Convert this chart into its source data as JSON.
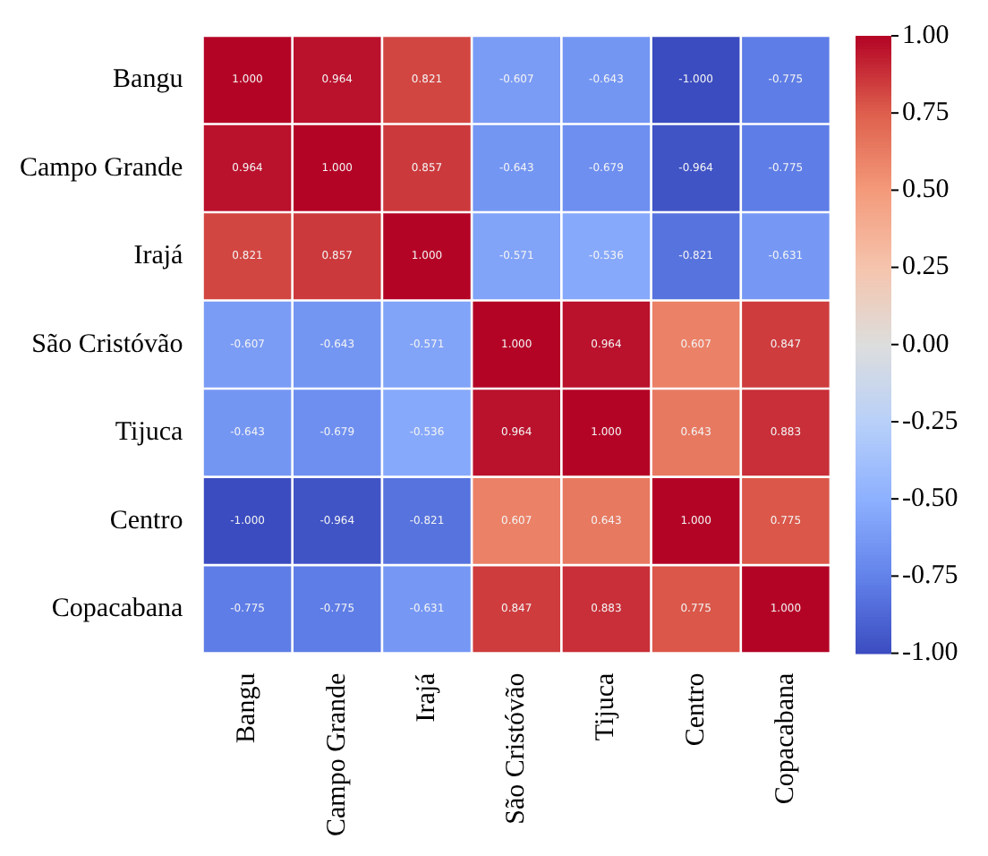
{
  "chart_data": {
    "type": "heatmap",
    "categories": [
      "Bangu",
      "Campo Grande",
      "Irajá",
      "São Cristóvão",
      "Tijuca",
      "Centro",
      "Copacabana"
    ],
    "y_categories": [
      "Bangu",
      "Campo Grande",
      "Irajá",
      "São Cristóvão",
      "Tijuca",
      "Centro",
      "Copacabana"
    ],
    "cells": [
      [
        1.0,
        0.964,
        0.821,
        -0.607,
        -0.643,
        -1.0,
        -0.775
      ],
      [
        0.964,
        1.0,
        0.857,
        -0.643,
        -0.679,
        -0.964,
        -0.775
      ],
      [
        0.821,
        0.857,
        1.0,
        -0.571,
        -0.536,
        -0.821,
        -0.631
      ],
      [
        -0.607,
        -0.643,
        -0.571,
        1.0,
        0.964,
        0.607,
        0.847
      ],
      [
        -0.643,
        -0.679,
        -0.536,
        0.964,
        1.0,
        0.643,
        0.883
      ],
      [
        -1.0,
        -0.964,
        -0.821,
        0.607,
        0.643,
        1.0,
        0.775
      ],
      [
        -0.775,
        -0.775,
        -0.631,
        0.847,
        0.883,
        0.775,
        1.0
      ]
    ],
    "cell_labels": [
      [
        "1.000",
        "0.964",
        "0.821",
        "-0.607",
        "-0.643",
        "-1.000",
        "-0.775"
      ],
      [
        "0.964",
        "1.000",
        "0.857",
        "-0.643",
        "-0.679",
        "-0.964",
        "-0.775"
      ],
      [
        "0.821",
        "0.857",
        "1.000",
        "-0.571",
        "-0.536",
        "-0.821",
        "-0.631"
      ],
      [
        "-0.607",
        "-0.643",
        "-0.571",
        "1.000",
        "0.964",
        "0.607",
        "0.847"
      ],
      [
        "-0.643",
        "-0.679",
        "-0.536",
        "0.964",
        "1.000",
        "0.643",
        "0.883"
      ],
      [
        "-1.000",
        "-0.964",
        "-0.821",
        "0.607",
        "0.643",
        "1.000",
        "0.775"
      ],
      [
        "-0.775",
        "-0.775",
        "-0.631",
        "0.847",
        "0.883",
        "0.775",
        "1.000"
      ]
    ],
    "clim": [
      -1,
      1
    ],
    "cticks": [
      {
        "value": -1,
        "label": "-1.00"
      },
      {
        "value": -0.75,
        "label": "-0.75"
      },
      {
        "value": -0.5,
        "label": "-0.50"
      },
      {
        "value": -0.25,
        "label": "-0.25"
      },
      {
        "value": 0,
        "label": "0.00"
      },
      {
        "value": 0.25,
        "label": "0.25"
      },
      {
        "value": 0.5,
        "label": "0.50"
      },
      {
        "value": 0.75,
        "label": "0.75"
      },
      {
        "value": 1,
        "label": "1.00"
      }
    ]
  }
}
